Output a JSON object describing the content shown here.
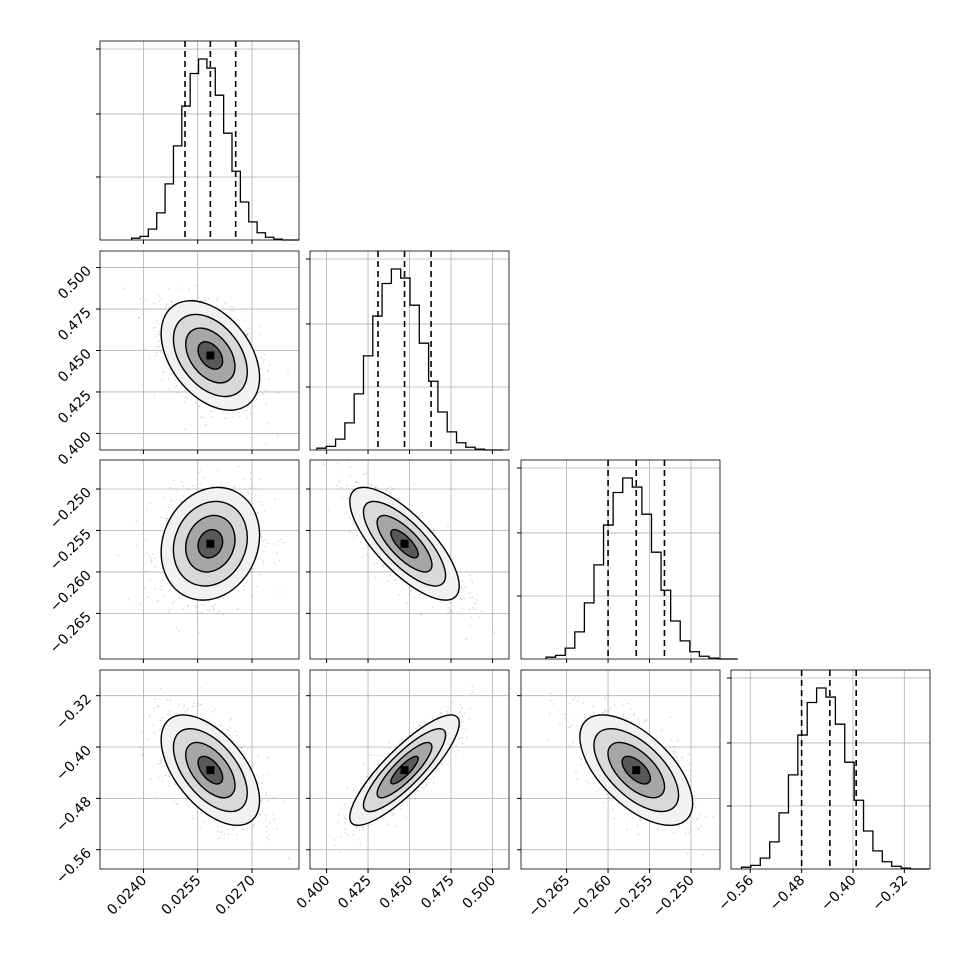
{
  "chart_data": {
    "type": "corner",
    "grid": true,
    "parameters": [
      {
        "index": 0,
        "median": 0.02585,
        "q16": 0.02515,
        "q84": 0.02655,
        "sigma": 0.00068,
        "range": [
          0.0228,
          0.0283
        ],
        "ticks": [
          0.024,
          0.0255,
          0.027
        ],
        "tick_labels": [
          "0.0240",
          "0.0255",
          "0.0270"
        ]
      },
      {
        "index": 1,
        "median": 0.447,
        "q16": 0.431,
        "q84": 0.463,
        "sigma": 0.0165,
        "range": [
          0.39,
          0.51
        ],
        "ticks": [
          0.4,
          0.425,
          0.45,
          0.475,
          0.5
        ],
        "tick_labels": [
          "0.400",
          "0.425",
          "0.450",
          "0.475",
          "0.500"
        ]
      },
      {
        "index": 2,
        "median": -0.2566,
        "q16": -0.26,
        "q84": -0.2532,
        "sigma": 0.0034,
        "range": [
          -0.2705,
          -0.2465
        ],
        "ticks": [
          -0.265,
          -0.26,
          -0.255,
          -0.25
        ],
        "tick_labels": [
          "−0.265",
          "−0.260",
          "−0.255",
          "−0.250"
        ]
      },
      {
        "index": 3,
        "median": -0.436,
        "q16": -0.48,
        "q84": -0.395,
        "sigma": 0.043,
        "range": [
          -0.59,
          -0.28
        ],
        "ticks": [
          -0.56,
          -0.48,
          -0.4,
          -0.32
        ],
        "tick_labels": [
          "−0.56",
          "−0.48",
          "−0.40",
          "−0.32"
        ]
      }
    ],
    "correlations": [
      {
        "pair": [
          0,
          1
        ],
        "rho": -0.4
      },
      {
        "pair": [
          0,
          2
        ],
        "rho": 0.15
      },
      {
        "pair": [
          0,
          3
        ],
        "rho": -0.55
      },
      {
        "pair": [
          1,
          2
        ],
        "rho": -0.75
      },
      {
        "pair": [
          1,
          3
        ],
        "rho": 0.85
      },
      {
        "pair": [
          2,
          3
        ],
        "rho": -0.6
      }
    ],
    "histogram": {
      "bins": 20,
      "normalized_counts": [
        0.01,
        0.02,
        0.06,
        0.15,
        0.31,
        0.52,
        0.74,
        0.92,
        1.0,
        0.95,
        0.8,
        0.59,
        0.38,
        0.21,
        0.1,
        0.04,
        0.015,
        0.005,
        0.0,
        0.0
      ]
    },
    "density_levels_sigma": [
      0.5,
      1.0,
      1.5,
      2.0
    ],
    "colors": {
      "line": "#000000",
      "grid": "#b0b0b0",
      "points": "#4d4d4d",
      "density_max": "#000000",
      "density_min": "#ffffff"
    }
  }
}
